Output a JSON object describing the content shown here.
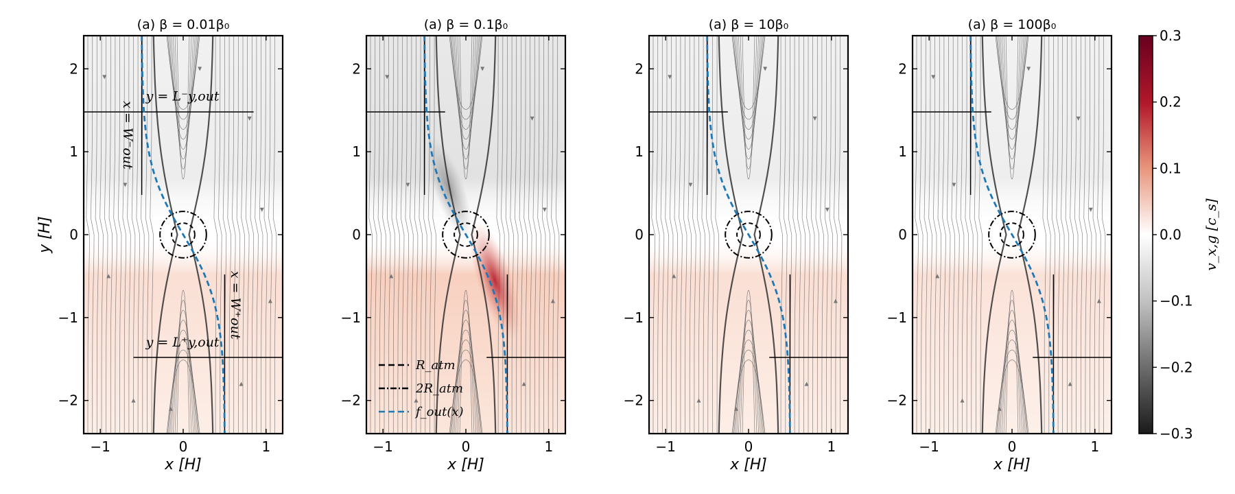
{
  "chart_data": {
    "type": "heatmap",
    "panels": [
      {
        "title": "(a) β = 0.01β₀",
        "beta_factor": 0.01,
        "max_abs_vx": 0.12
      },
      {
        "title": "(a) β = 0.1β₀",
        "beta_factor": 0.1,
        "max_abs_vx": 0.28
      },
      {
        "title": "(a) β = 10β₀",
        "beta_factor": 10,
        "max_abs_vx": 0.12
      },
      {
        "title": "(a) β = 100β₀",
        "beta_factor": 100,
        "max_abs_vx": 0.1
      }
    ],
    "xlabel": "x [H]",
    "ylabel": "y [H]",
    "xlim": [
      -1.2,
      1.2
    ],
    "ylim": [
      -2.4,
      2.4
    ],
    "xticks": [
      -1,
      0,
      1
    ],
    "yticks": [
      -2,
      -1,
      0,
      1,
      2
    ],
    "colorbar": {
      "label": "v_x,g [c_s]",
      "range": [
        -0.3,
        0.3
      ],
      "ticks": [
        "0.3",
        "0.2",
        "0.1",
        "0.0",
        "−0.1",
        "−0.2",
        "−0.3"
      ],
      "colormap": "RdGy_r"
    },
    "legend": [
      {
        "label": "R_atm",
        "style": "dashed",
        "color": "#000000"
      },
      {
        "label": "2R_atm",
        "style": "dashdot",
        "color": "#000000"
      },
      {
        "label": "f_out(x)",
        "style": "dashed",
        "color": "#1f77b4"
      }
    ],
    "R_atm": 0.1,
    "W_out": 0.5,
    "L_y_out": 1.48,
    "annotations": {
      "y_minus": "y = L⁻y,out",
      "y_plus": "y = L⁺y,out",
      "x_minus": "x = W⁻out",
      "x_plus": "x = W⁺out"
    }
  },
  "colors": {
    "red_max": "#67001f",
    "red_mid": "#e8937a",
    "gray_max": "#1a1a1a",
    "gray_mid": "#bdbdbd",
    "stream": "#555555",
    "f_out": "#1f77b4"
  }
}
